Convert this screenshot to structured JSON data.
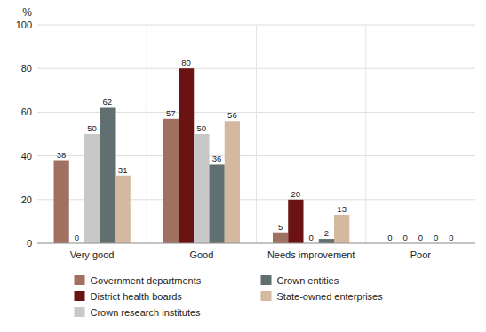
{
  "chart_data": {
    "type": "bar",
    "categories": [
      "Very good",
      "Good",
      "Needs improvement",
      "Poor"
    ],
    "series": [
      {
        "name": "Government departments",
        "color": "#a07060",
        "values": [
          38,
          57,
          5,
          0
        ]
      },
      {
        "name": "District health boards",
        "color": "#6b1212",
        "values": [
          0,
          80,
          20,
          0
        ]
      },
      {
        "name": "Crown research institutes",
        "color": "#c8c8c8",
        "values": [
          50,
          50,
          0,
          0
        ]
      },
      {
        "name": "Crown entities",
        "color": "#607070",
        "values": [
          62,
          36,
          2,
          0
        ]
      },
      {
        "name": "State-owned enterprises",
        "color": "#d4b8a0",
        "values": [
          31,
          56,
          13,
          0
        ]
      }
    ],
    "y_label": "%",
    "ylim": [
      0,
      100
    ],
    "yticks": [
      0,
      20,
      40,
      60,
      80,
      100
    ],
    "grid": true,
    "data_labels": true,
    "legend": "bottom"
  }
}
